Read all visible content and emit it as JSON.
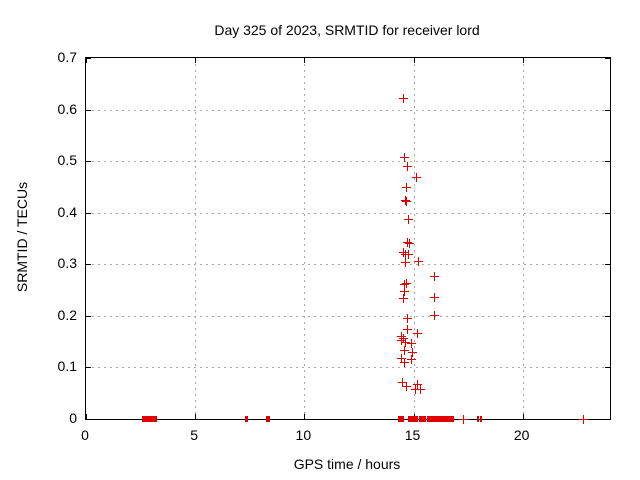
{
  "chart_data": {
    "type": "scatter",
    "title": "Day 325 of 2023, SRMTID for receiver lord",
    "xlabel": "GPS time / hours",
    "ylabel": "SRMTID / TECUs",
    "xlim": [
      0,
      24
    ],
    "ylim": [
      0,
      0.7
    ],
    "grid": true,
    "legend": "none",
    "marker": "plus",
    "marker_color": "#e10000",
    "grid_color": "#aaaaaa",
    "xticks": {
      "values": [
        0,
        5,
        10,
        15,
        20
      ],
      "labels": [
        "0",
        "5",
        "10",
        "15",
        "20"
      ]
    },
    "yticks": {
      "values": [
        0,
        0.1,
        0.2,
        0.3,
        0.4,
        0.5,
        0.6,
        0.7
      ],
      "labels": [
        "0",
        "0.1",
        "0.2",
        "0.3",
        "0.4",
        "0.5",
        "0.6",
        "0.7"
      ]
    },
    "points": [
      [
        14.51,
        0.623
      ],
      [
        14.58,
        0.508
      ],
      [
        14.69,
        0.49
      ],
      [
        15.12,
        0.469
      ],
      [
        14.66,
        0.449
      ],
      [
        14.61,
        0.425
      ],
      [
        14.66,
        0.422
      ],
      [
        14.77,
        0.388
      ],
      [
        14.7,
        0.343
      ],
      [
        14.81,
        0.341
      ],
      [
        14.53,
        0.323
      ],
      [
        14.61,
        0.32
      ],
      [
        14.73,
        0.319
      ],
      [
        14.61,
        0.305
      ],
      [
        15.2,
        0.306
      ],
      [
        15.96,
        0.277
      ],
      [
        14.66,
        0.264
      ],
      [
        14.56,
        0.261
      ],
      [
        14.58,
        0.248
      ],
      [
        14.51,
        0.234
      ],
      [
        15.96,
        0.237
      ],
      [
        15.96,
        0.202
      ],
      [
        14.7,
        0.196
      ],
      [
        14.72,
        0.175
      ],
      [
        15.15,
        0.167
      ],
      [
        14.42,
        0.161
      ],
      [
        14.54,
        0.158
      ],
      [
        14.45,
        0.153
      ],
      [
        14.62,
        0.15
      ],
      [
        14.9,
        0.147
      ],
      [
        14.57,
        0.134
      ],
      [
        14.95,
        0.13
      ],
      [
        14.45,
        0.119
      ],
      [
        14.87,
        0.116
      ],
      [
        14.57,
        0.11
      ],
      [
        14.48,
        0.072
      ],
      [
        15.15,
        0.068
      ],
      [
        14.66,
        0.064
      ],
      [
        15.09,
        0.058
      ],
      [
        15.3,
        0.058
      ]
    ],
    "zero_runs": [
      [
        2.55,
        3.25
      ],
      [
        7.3,
        7.42
      ],
      [
        8.24,
        8.29
      ],
      [
        8.34,
        8.4
      ],
      [
        14.28,
        14.58
      ],
      [
        14.77,
        15.19
      ],
      [
        15.27,
        15.58
      ],
      [
        15.62,
        16.87
      ],
      [
        17.91,
        18.0
      ],
      [
        18.05,
        18.13
      ]
    ],
    "zero_singles": [
      17.29,
      22.75
    ]
  }
}
